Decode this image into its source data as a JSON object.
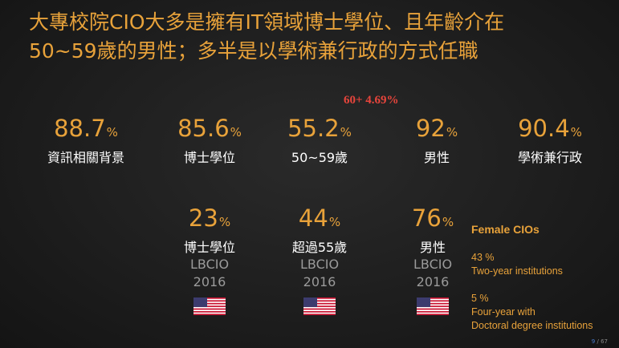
{
  "title": {
    "line1": "大專校院CIO大多是擁有IT領域博士學位、且年齡介在",
    "line2": "50~59歲的男性；多半是以學術兼行政的方式任職"
  },
  "highlight": "60+ 4.69%",
  "row1": [
    {
      "value": "88.7",
      "unit": "%",
      "label": "資訊相關背景"
    },
    {
      "value": "85.6",
      "unit": "%",
      "label": "博士學位"
    },
    {
      "value": "55.2",
      "unit": "%",
      "label": "50~59歲"
    },
    {
      "value": "92",
      "unit": "%",
      "label": "男性"
    },
    {
      "value": "90.4",
      "unit": "%",
      "label": "學術兼行政"
    }
  ],
  "row2": [
    {
      "value": "23",
      "unit": "%",
      "label": "博士學位",
      "source": "LBCIO",
      "year": "2016"
    },
    {
      "value": "44",
      "unit": "%",
      "label": "超過55歲",
      "source": "LBCIO",
      "year": "2016"
    },
    {
      "value": "76",
      "unit": "%",
      "label": "男性",
      "source": "LBCIO",
      "year": "2016"
    }
  ],
  "female": {
    "title": "Female CIOs",
    "note1_pct": "43 %",
    "note1_text": "Two-year institutions",
    "note2_pct": "5 %",
    "note2_line1": "Four-year with",
    "note2_line2": "Doctoral degree institutions"
  },
  "page": {
    "current": "9",
    "separator": " / ",
    "total": "67"
  },
  "colors": {
    "accent": "#e8a23a",
    "highlight": "#e8453c",
    "muted": "#9a9a9a"
  },
  "icons": [
    "us-flag-icon"
  ]
}
